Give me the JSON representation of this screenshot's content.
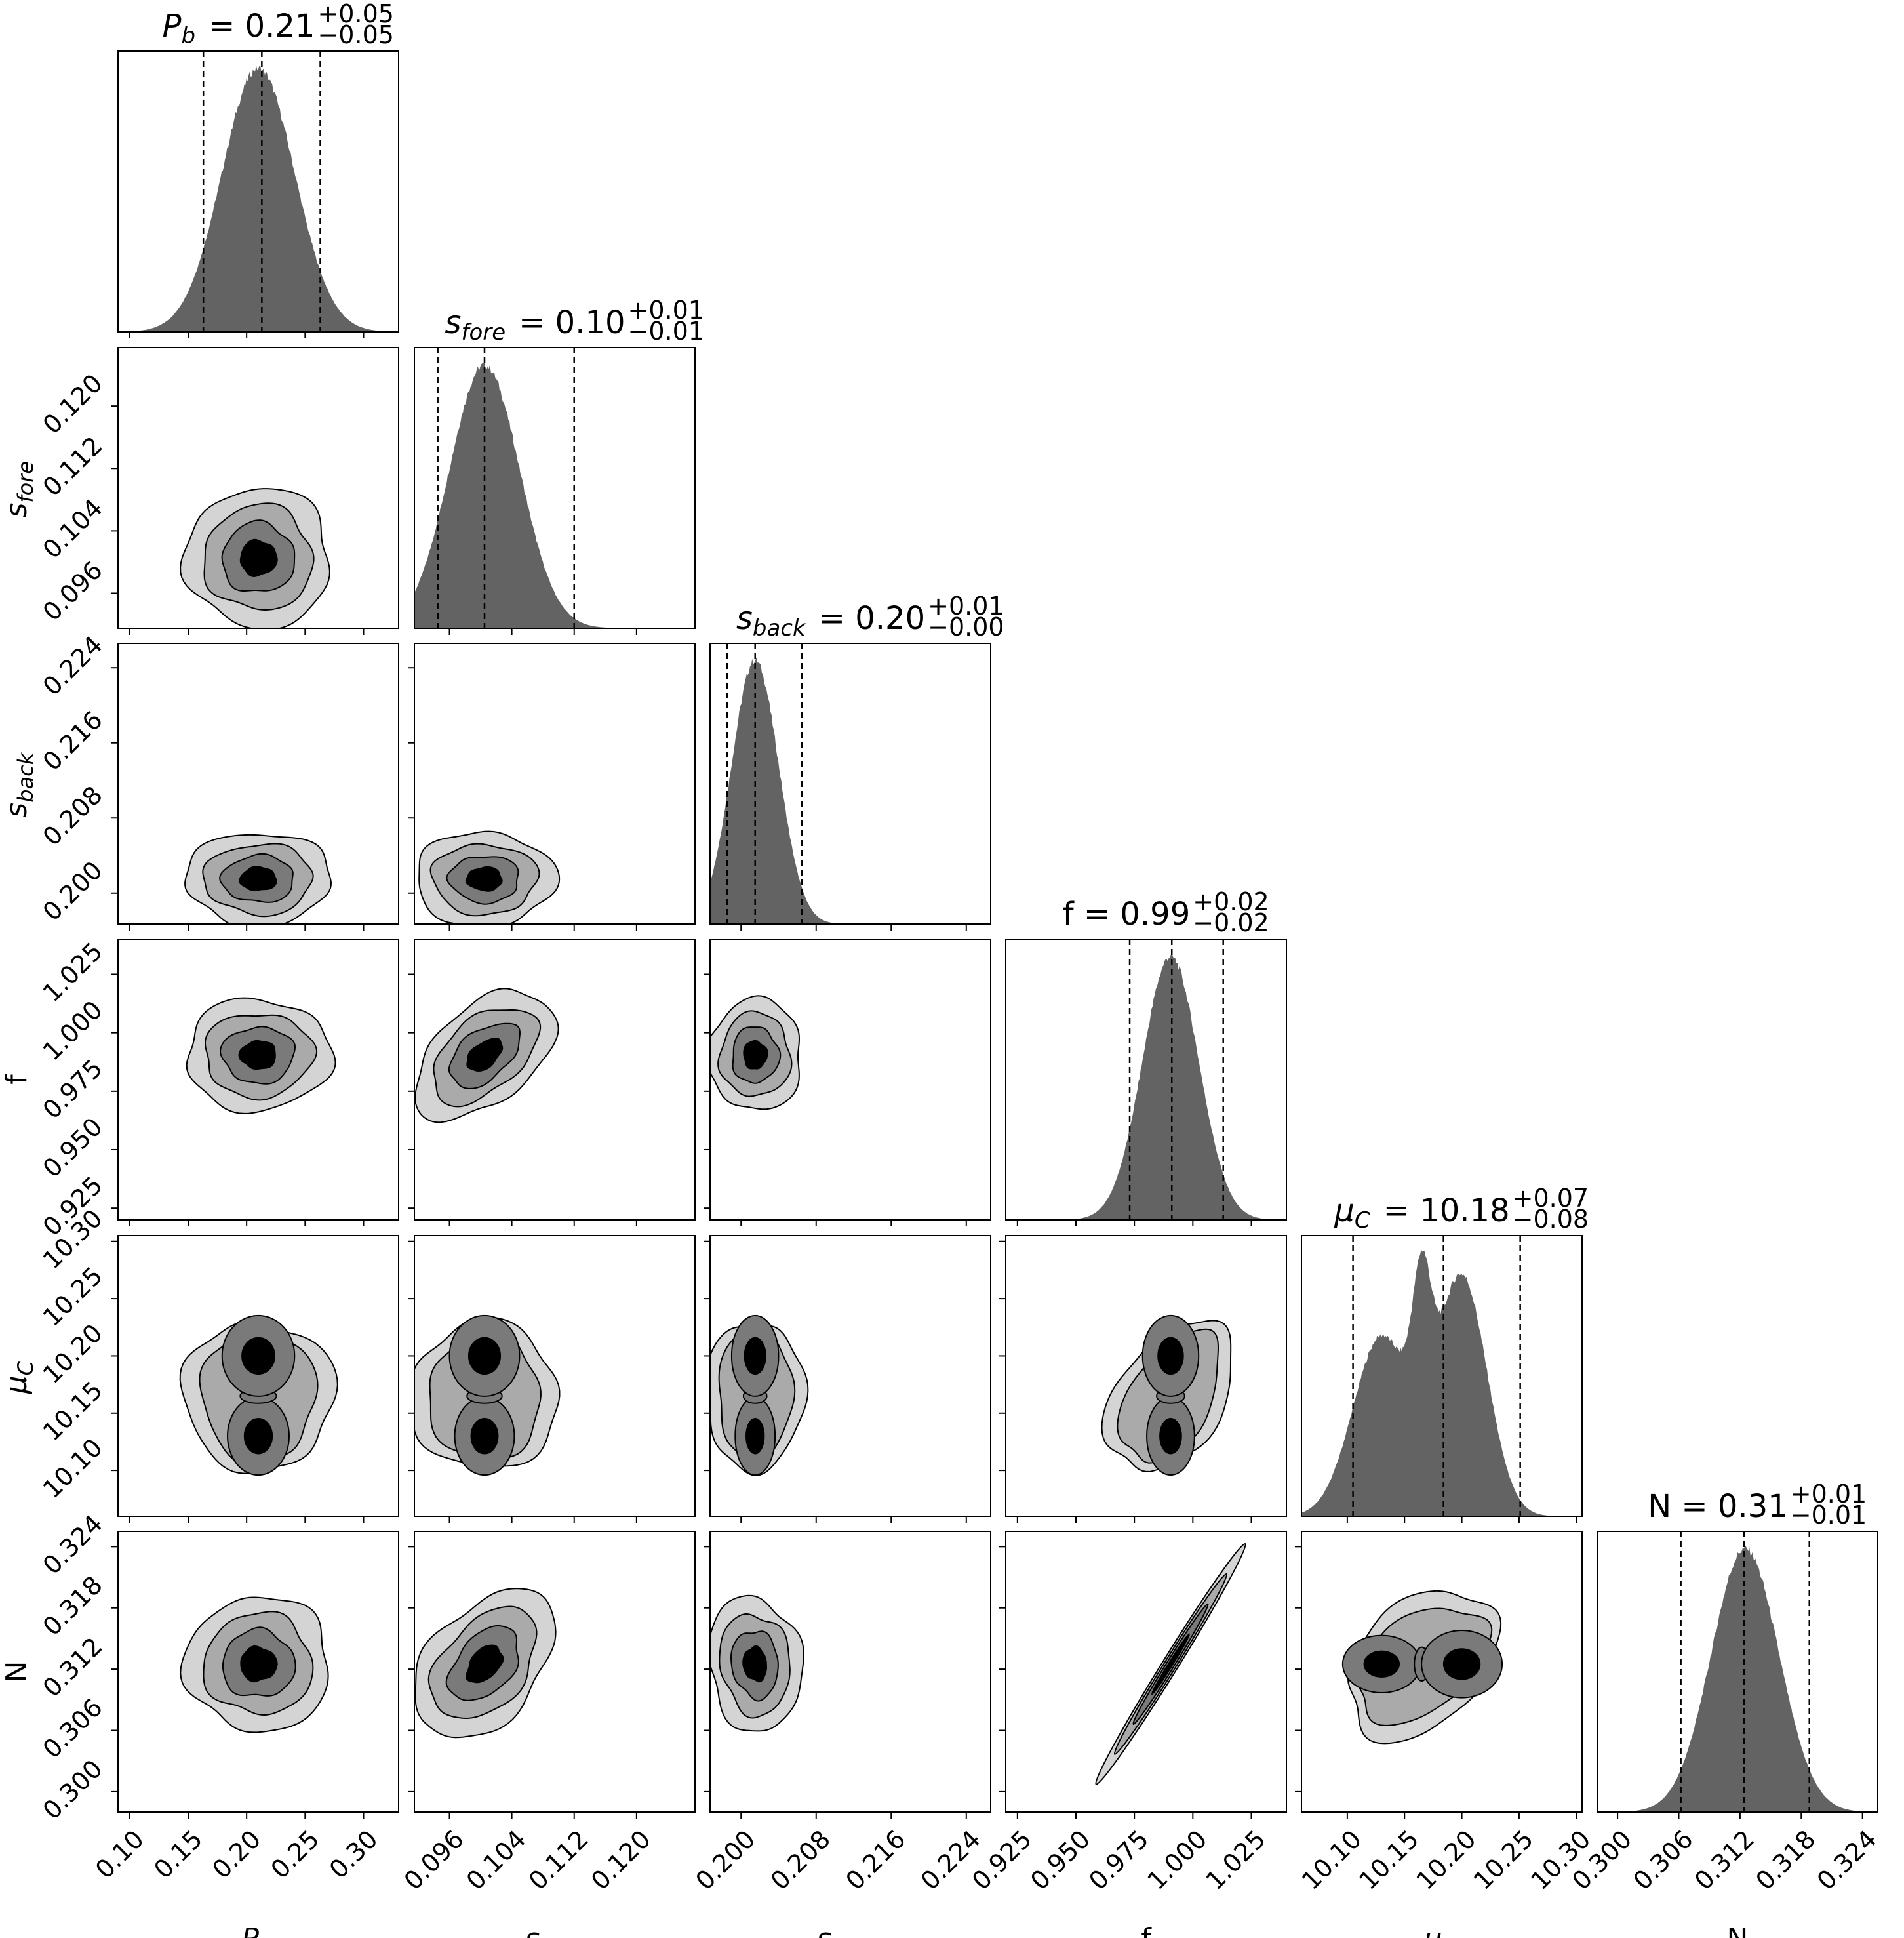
{
  "chart_data": {
    "type": "corner",
    "parameters": [
      {
        "key": "Pb",
        "symbol": "P",
        "subscript": "b",
        "median": "0.21",
        "plus": "+0.05",
        "minus": "−0.05",
        "range": [
          0.09,
          0.33
        ],
        "ticks": [
          0.1,
          0.15,
          0.2,
          0.25,
          0.3
        ],
        "tick_labels": [
          "0.10",
          "0.15",
          "0.20",
          "0.25",
          "0.30"
        ],
        "mu": 0.21,
        "sigma": 0.031,
        "quantiles": [
          0.163,
          0.213,
          0.263
        ]
      },
      {
        "key": "sfore",
        "symbol": "s",
        "subscript": "fore",
        "median": "0.10",
        "plus": "+0.01",
        "minus": "−0.01",
        "range": [
          0.0915,
          0.1275
        ],
        "ticks": [
          0.096,
          0.104,
          0.112,
          0.12
        ],
        "tick_labels": [
          "0.096",
          "0.104",
          "0.112",
          "0.120"
        ],
        "mu": 0.1005,
        "sigma": 0.0045,
        "quantiles": [
          0.0945,
          0.1005,
          0.112
        ]
      },
      {
        "key": "sback",
        "symbol": "s",
        "subscript": "back",
        "median": "0.20",
        "plus": "+0.01",
        "minus": "−0.00",
        "range": [
          0.1967,
          0.2266
        ],
        "ticks": [
          0.2,
          0.208,
          0.216,
          0.224
        ],
        "tick_labels": [
          "0.200",
          "0.208",
          "0.216",
          "0.224"
        ],
        "mu": 0.2015,
        "sigma": 0.0025,
        "quantiles": [
          0.1985,
          0.2015,
          0.2065
        ]
      },
      {
        "key": "f",
        "symbol": "f",
        "subscript": "",
        "median": "0.99",
        "plus": "+0.02",
        "minus": "−0.02",
        "range": [
          0.92,
          1.04
        ],
        "ticks": [
          0.925,
          0.95,
          0.975,
          1.0,
          1.025
        ],
        "tick_labels": [
          "0.925",
          "0.950",
          "0.975",
          "1.000",
          "1.025"
        ],
        "mu": 0.9905,
        "sigma": 0.012,
        "quantiles": [
          0.973,
          0.991,
          1.013
        ]
      },
      {
        "key": "muC",
        "symbol": "μ",
        "subscript": "C",
        "median": "10.18",
        "plus": "+0.07",
        "minus": "−0.08",
        "range": [
          10.06,
          10.305
        ],
        "ticks": [
          10.1,
          10.15,
          10.2,
          10.25,
          10.3
        ],
        "tick_labels": [
          "10.10",
          "10.15",
          "10.20",
          "10.25",
          "10.30"
        ],
        "mu": 10.18,
        "sigma": 0.05,
        "quantiles": [
          10.105,
          10.184,
          10.251
        ]
      },
      {
        "key": "N",
        "symbol": "N",
        "subscript": "",
        "median": "0.31",
        "plus": "+0.01",
        "minus": "−0.01",
        "range": [
          0.298,
          0.3255
        ],
        "ticks": [
          0.3,
          0.306,
          0.312,
          0.318,
          0.324
        ],
        "tick_labels": [
          "0.300",
          "0.306",
          "0.312",
          "0.318",
          "0.324"
        ],
        "mu": 0.3125,
        "sigma": 0.0033,
        "quantiles": [
          0.3062,
          0.3124,
          0.3188
        ]
      }
    ],
    "muC_modes": [
      {
        "center": 10.13,
        "sigma": 0.025,
        "weight": 0.75
      },
      {
        "center": 10.165,
        "sigma": 0.008,
        "weight": 0.55
      },
      {
        "center": 10.2,
        "sigma": 0.022,
        "weight": 1.0
      }
    ],
    "histogram_color": "#636363",
    "contour_fills": [
      "#d4d4d4",
      "#aaaaaa",
      "#7a7a7a",
      "#000000"
    ],
    "contour_levels_sigma": [
      2.0,
      1.5,
      1.0,
      0.5
    ]
  }
}
